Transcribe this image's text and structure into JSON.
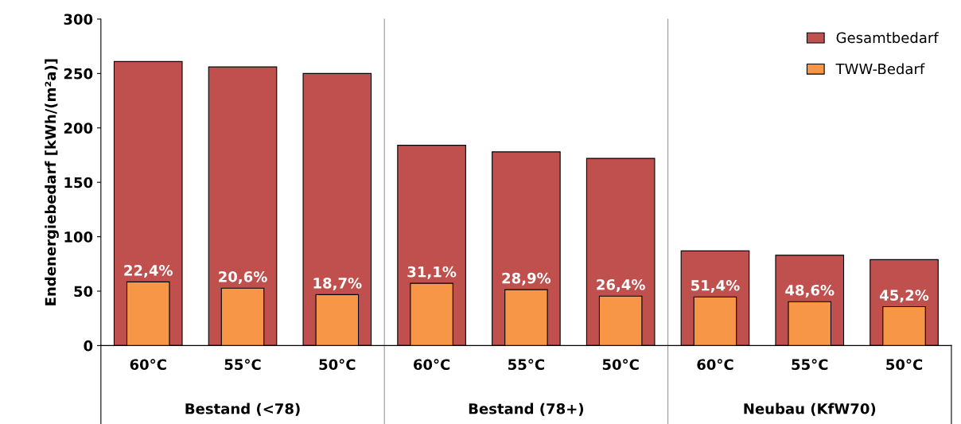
{
  "chart_data": {
    "type": "bar",
    "ylabel": "Endenergiebedarf [kWh/(m²a)]",
    "categories": [
      "60°C",
      "55°C",
      "50°C",
      "60°C",
      "55°C",
      "50°C",
      "60°C",
      "55°C",
      "50°C"
    ],
    "series": [
      {
        "name": "Gesamtbedarf",
        "color": "#c0504d",
        "values": [
          261,
          256,
          250,
          184,
          178,
          172,
          87,
          83,
          79
        ]
      },
      {
        "name": "TWW-Bedarf",
        "color": "#f79646",
        "values": [
          58.5,
          52.7,
          46.8,
          57.2,
          51.4,
          45.4,
          44.7,
          40.3,
          35.7
        ]
      }
    ],
    "annotations": [
      "Bestand (<78)",
      "Bestand (78+)",
      "Neubau (KfW70)",
      "22,4%",
      "20,6%",
      "18,7%",
      "31,1%",
      "28,9%",
      "26,4%",
      "51,4%",
      "48,6%",
      "45,2%"
    ],
    "ylim": [
      0,
      300
    ],
    "yticks": [
      0,
      50,
      100,
      150,
      200,
      250,
      300
    ],
    "legend": "top right",
    "grid": false
  }
}
